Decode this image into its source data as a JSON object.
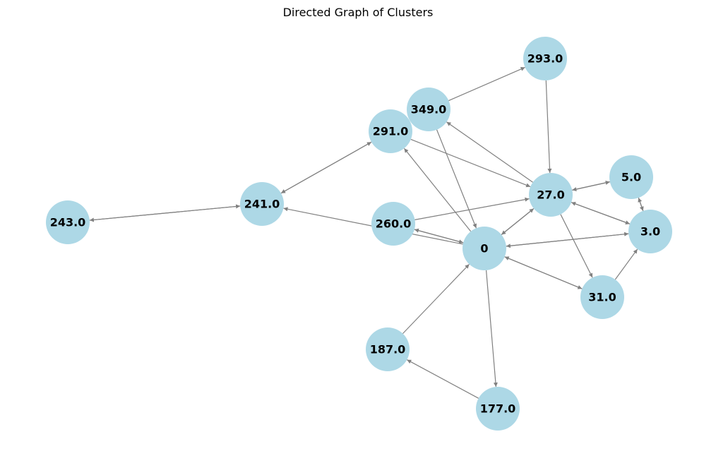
{
  "title": "Directed Graph of Clusters",
  "style": {
    "node_color": "#add8e6",
    "edge_color": "#808080",
    "label_color": "#000000"
  },
  "nodes": [
    {
      "id": "0",
      "label": "0"
    },
    {
      "id": "3",
      "label": "3.0"
    },
    {
      "id": "5",
      "label": "5.0"
    },
    {
      "id": "27",
      "label": "27.0"
    },
    {
      "id": "31",
      "label": "31.0"
    },
    {
      "id": "177",
      "label": "177.0"
    },
    {
      "id": "187",
      "label": "187.0"
    },
    {
      "id": "241",
      "label": "241.0"
    },
    {
      "id": "243",
      "label": "243.0"
    },
    {
      "id": "260",
      "label": "260.0"
    },
    {
      "id": "291",
      "label": "291.0"
    },
    {
      "id": "293",
      "label": "293.0"
    },
    {
      "id": "349",
      "label": "349.0"
    }
  ],
  "edges": [
    {
      "source": "243",
      "target": "241"
    },
    {
      "source": "241",
      "target": "243"
    },
    {
      "source": "241",
      "target": "291"
    },
    {
      "source": "291",
      "target": "241"
    },
    {
      "source": "0",
      "target": "241"
    },
    {
      "source": "0",
      "target": "260"
    },
    {
      "source": "260",
      "target": "0"
    },
    {
      "source": "0",
      "target": "291"
    },
    {
      "source": "349",
      "target": "0"
    },
    {
      "source": "349",
      "target": "293"
    },
    {
      "source": "293",
      "target": "27"
    },
    {
      "source": "27",
      "target": "349"
    },
    {
      "source": "291",
      "target": "27"
    },
    {
      "source": "260",
      "target": "27"
    },
    {
      "source": "0",
      "target": "27"
    },
    {
      "source": "27",
      "target": "0"
    },
    {
      "source": "27",
      "target": "5"
    },
    {
      "source": "5",
      "target": "27"
    },
    {
      "source": "27",
      "target": "3"
    },
    {
      "source": "3",
      "target": "27"
    },
    {
      "source": "5",
      "target": "3"
    },
    {
      "source": "3",
      "target": "5"
    },
    {
      "source": "0",
      "target": "3"
    },
    {
      "source": "3",
      "target": "0"
    },
    {
      "source": "0",
      "target": "31"
    },
    {
      "source": "31",
      "target": "0"
    },
    {
      "source": "27",
      "target": "31"
    },
    {
      "source": "31",
      "target": "3"
    },
    {
      "source": "0",
      "target": "177"
    },
    {
      "source": "177",
      "target": "187"
    },
    {
      "source": "187",
      "target": "0"
    }
  ]
}
